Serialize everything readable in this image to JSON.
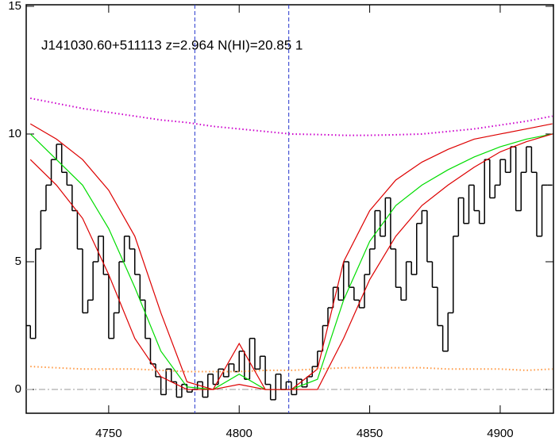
{
  "chart_data": {
    "type": "line",
    "title": "J141030.60+511113 z=2.964 N(HI)=20.85 1",
    "xlim": [
      4718.4,
      4920.4
    ],
    "ylim": [
      -0.93,
      15.06
    ],
    "xticks": [
      4750,
      4800,
      4850,
      4900
    ],
    "yticks": [
      0,
      5,
      10,
      15
    ],
    "hline": 0,
    "vlines": [
      4783,
      4819
    ],
    "series": [
      {
        "color": "#000000",
        "step": true,
        "x": [
          4719,
          4721,
          4723,
          4725,
          4727,
          4729,
          4731,
          4733,
          4735,
          4737,
          4739,
          4741,
          4743,
          4745,
          4747,
          4749,
          4751,
          4753,
          4755,
          4757,
          4759,
          4761,
          4763,
          4765,
          4767,
          4769,
          4771,
          4773,
          4775,
          4777,
          4779,
          4781,
          4783,
          4785,
          4787,
          4789,
          4791,
          4793,
          4795,
          4797,
          4799,
          4801,
          4803,
          4805,
          4807,
          4809,
          4811,
          4813,
          4815,
          4817,
          4819,
          4821,
          4823,
          4825,
          4827,
          4829,
          4831,
          4833,
          4835,
          4837,
          4839,
          4841,
          4843,
          4845,
          4847,
          4849,
          4851,
          4853,
          4855,
          4857,
          4859,
          4861,
          4863,
          4865,
          4867,
          4869,
          4871,
          4873,
          4875,
          4877,
          4879,
          4881,
          4883,
          4885,
          4887,
          4889,
          4891,
          4893,
          4895,
          4897,
          4899,
          4901,
          4903,
          4905,
          4907,
          4909,
          4911,
          4913,
          4915,
          4917,
          4919
        ],
        "values": [
          2.5,
          2.0,
          5.5,
          7.0,
          8.0,
          9.0,
          9.6,
          8.5,
          8.0,
          7.0,
          5.5,
          3.0,
          3.5,
          5.0,
          6.0,
          4.5,
          2.0,
          3.0,
          5.0,
          6.0,
          5.5,
          4.5,
          3.5,
          2.0,
          1.0,
          0.5,
          -0.2,
          0.8,
          0.3,
          -0.3,
          0.2,
          -0.1,
          0.0,
          0.3,
          -0.3,
          0.6,
          0.2,
          0.8,
          0.5,
          1.0,
          0.7,
          1.5,
          0.4,
          2.0,
          0.8,
          1.3,
          0.2,
          -0.4,
          0.6,
          0.0,
          0.3,
          -0.2,
          0.4,
          0.1,
          0.5,
          0.9,
          1.5,
          2.5,
          3.2,
          4.0,
          3.5,
          5.0,
          4.0,
          3.5,
          3.2,
          4.5,
          5.5,
          7.0,
          6.0,
          7.5,
          5.5,
          4.0,
          3.5,
          5.0,
          4.5,
          6.5,
          7.0,
          5.0,
          4.0,
          2.5,
          1.5,
          3.0,
          6.0,
          7.5,
          6.5,
          8.0,
          7.0,
          6.5,
          9.0,
          7.5,
          8.0,
          9.0,
          8.5,
          9.5,
          7.0,
          8.5,
          9.5,
          8.5,
          6.0,
          8.0,
          8.0
        ]
      },
      {
        "color": "#00dd00",
        "x": [
          4720,
          4730,
          4740,
          4750,
          4760,
          4770,
          4780,
          4790,
          4800,
          4810,
          4820,
          4830,
          4840,
          4850,
          4860,
          4870,
          4880,
          4890,
          4900,
          4910,
          4920
        ],
        "values": [
          10.0,
          9.0,
          8.0,
          6.3,
          4.0,
          1.5,
          0.1,
          0.0,
          0.6,
          0.0,
          0.0,
          0.4,
          3.5,
          5.8,
          7.2,
          8.0,
          8.6,
          9.1,
          9.5,
          9.8,
          10.0
        ]
      },
      {
        "color": "#dd0000",
        "x": [
          4720,
          4730,
          4740,
          4750,
          4760,
          4770,
          4780,
          4790,
          4800,
          4810,
          4820,
          4830,
          4840,
          4850,
          4860,
          4870,
          4880,
          4890,
          4900,
          4910,
          4920
        ],
        "values": [
          10.4,
          9.8,
          9.0,
          7.8,
          6.0,
          3.0,
          0.3,
          0.0,
          1.8,
          0.0,
          0.0,
          0.8,
          5.0,
          7.0,
          8.2,
          8.9,
          9.4,
          9.8,
          10.0,
          10.2,
          10.4
        ]
      },
      {
        "color": "#dd0000",
        "x": [
          4720,
          4730,
          4740,
          4750,
          4760,
          4770,
          4780,
          4790,
          4800,
          4810,
          4820,
          4830,
          4840,
          4850,
          4860,
          4870,
          4880,
          4890,
          4900,
          4910,
          4920
        ],
        "values": [
          9.0,
          8.0,
          6.7,
          4.5,
          2.0,
          0.5,
          0.0,
          0.0,
          0.2,
          0.0,
          0.0,
          0.0,
          2.0,
          4.3,
          6.0,
          7.2,
          8.0,
          8.7,
          9.3,
          9.7,
          10.0
        ]
      },
      {
        "color": "#cc00cc",
        "dotted": true,
        "x": [
          4720,
          4730,
          4740,
          4750,
          4760,
          4770,
          4780,
          4790,
          4800,
          4810,
          4820,
          4830,
          4840,
          4850,
          4860,
          4870,
          4880,
          4890,
          4900,
          4910,
          4920
        ],
        "values": [
          11.4,
          11.2,
          11.0,
          10.85,
          10.7,
          10.55,
          10.45,
          10.3,
          10.2,
          10.1,
          10.0,
          9.98,
          9.95,
          9.95,
          9.97,
          10.0,
          10.1,
          10.2,
          10.35,
          10.5,
          10.7
        ]
      },
      {
        "color": "#ff9944",
        "dotted": true,
        "x": [
          4720,
          4730,
          4740,
          4750,
          4760,
          4770,
          4780,
          4790,
          4800,
          4810,
          4820,
          4830,
          4840,
          4850,
          4860,
          4870,
          4880,
          4890,
          4900,
          4910,
          4920
        ],
        "values": [
          0.9,
          0.85,
          0.8,
          0.8,
          0.8,
          0.75,
          0.7,
          0.7,
          0.7,
          0.75,
          0.75,
          0.8,
          0.85,
          0.85,
          0.85,
          0.85,
          0.8,
          0.8,
          0.8,
          0.75,
          0.8
        ]
      }
    ]
  }
}
